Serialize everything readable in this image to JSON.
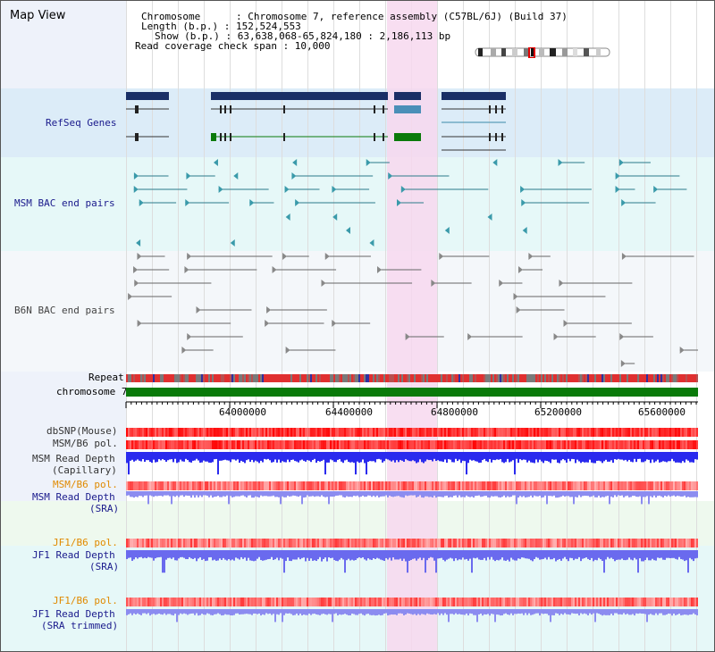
{
  "page_title": "Map View",
  "info_lines": [
    "Chromosome      : Chromosome 7, reference assembly (C57BL/6J) (Build 37)",
    "Length (b.p.) : 152,524,553",
    "Show (b.p.) : 63,638,068-65,824,180 : 2,186,113 bp",
    "Read coverage check span : 10,000"
  ],
  "tracks": {
    "refseq": "RefSeq Genes",
    "msm_bac": "MSM BAC end pairs",
    "b6n_bac": "B6N BAC end pairs",
    "repeat": "Repeat",
    "chromosome": "chromosome 7",
    "dbsnp": "dbSNP(Mouse)",
    "msm_b6_pol": "MSM/B6 pol.",
    "msm_read_cap": [
      "MSM Read Depth",
      "(Capillary)"
    ],
    "msm_b6_pol_2": "MSM/B6 pol.",
    "msm_read_sra": [
      "MSM Read Depth",
      "(SRA)"
    ],
    "jf1_b6_pol": "JF1/B6 pol.",
    "jf1_read_sra": [
      "JF1 Read Depth",
      "(SRA)"
    ],
    "jf1_b6_pol_2": "JF1/B6 pol.",
    "jf1_read_trim": [
      "JF1 Read Depth",
      "(SRA trimmed)"
    ]
  },
  "axis_ticks": [
    "64000000",
    "64400000",
    "64800000",
    "65200000",
    "65600000"
  ],
  "colors": {
    "label_blue": "#1a1a8c",
    "label_orange": "#e08a00",
    "refseq_bg": "#dcecf8",
    "msm_bg": "#e6f8f8",
    "highlight": "#f7d8ef",
    "chromosome_bar": "#0a7a0a"
  }
}
